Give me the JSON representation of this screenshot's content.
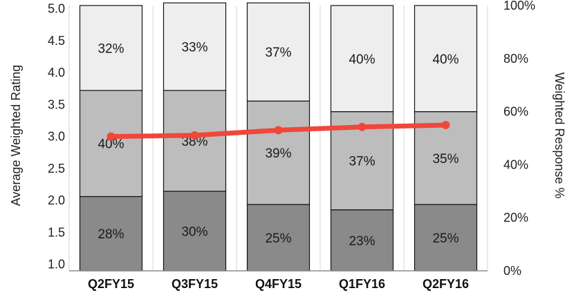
{
  "chart_data": {
    "type": "bar",
    "stacked": true,
    "categories": [
      "Q2FY15",
      "Q3FY15",
      "Q4FY15",
      "Q1FY16",
      "Q2FY16"
    ],
    "series": [
      {
        "values": [
          28,
          30,
          25,
          23,
          25
        ],
        "labels": [
          "28%",
          "30%",
          "25%",
          "23%",
          "25%"
        ],
        "color": "#8a8a8a"
      },
      {
        "values": [
          40,
          38,
          39,
          37,
          35
        ],
        "labels": [
          "40%",
          "38%",
          "39%",
          "37%",
          "35%"
        ],
        "color": "#bdbdbd"
      },
      {
        "values": [
          32,
          33,
          37,
          40,
          40
        ],
        "labels": [
          "32%",
          "33%",
          "37%",
          "40%",
          "40%"
        ],
        "color": "#eeeeee"
      }
    ],
    "line": {
      "values": [
        3.0,
        3.02,
        3.1,
        3.15,
        3.18
      ],
      "color": "#f0473a",
      "axis": "left"
    },
    "ylabel": "Average Weighted Rating",
    "ylim": [
      0.9,
      5.05
    ],
    "yticks": [
      "5.0",
      "4.5",
      "4.0",
      "3.5",
      "3.0",
      "2.5",
      "2.0",
      "1.5",
      "1.0"
    ],
    "y2label": "Weighted Response %",
    "y2lim": [
      0,
      100
    ],
    "y2ticks": [
      "100%",
      "80%",
      "60%",
      "40%",
      "20%",
      "0%"
    ],
    "grid": true
  }
}
